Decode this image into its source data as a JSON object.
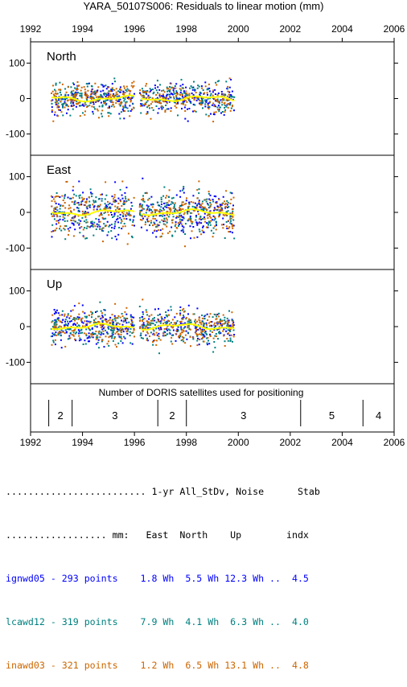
{
  "title": "YARA_50107S006: Residuals to linear motion (mm)",
  "chart_data": {
    "type": "scatter",
    "title": "YARA_50107S006: Residuals to linear motion (mm)",
    "x_ticks": [
      "1992",
      "1994",
      "1996",
      "1998",
      "2000",
      "2002",
      "2004",
      "2006"
    ],
    "xlim": [
      1992,
      2006
    ],
    "panels": [
      {
        "name": "North",
        "ylim": [
          -160,
          160
        ],
        "y_ticks": [
          "100",
          "0",
          "-100"
        ],
        "scatter_sd": 22
      },
      {
        "name": "East",
        "ylim": [
          -160,
          160
        ],
        "y_ticks": [
          "100",
          "0",
          "-100"
        ],
        "scatter_sd": 32
      },
      {
        "name": "Up",
        "ylim": [
          -160,
          160
        ],
        "y_ticks": [
          "100",
          "0",
          "-100"
        ],
        "scatter_sd": 24
      }
    ],
    "data_span": [
      1992.8,
      1999.85
    ],
    "data_gap": [
      1996.0,
      1996.2
    ],
    "series": [
      {
        "name": "ignwd05",
        "points": 293,
        "color": "#0000ff"
      },
      {
        "name": "lcawd12",
        "points": 319,
        "color": "#008080"
      },
      {
        "name": "inawd03",
        "points": 321,
        "color": "#cc6600"
      }
    ],
    "smooth_color": "#ffff00",
    "satellites": {
      "label": "Number of DORIS satellites used for positioning",
      "segments": [
        {
          "start": 1992.7,
          "end": 1993.6,
          "count": "2"
        },
        {
          "start": 1993.6,
          "end": 1996.9,
          "count": "3"
        },
        {
          "start": 1996.9,
          "end": 1998.0,
          "count": "2"
        },
        {
          "start": 1998.0,
          "end": 2002.4,
          "count": "3"
        },
        {
          "start": 2002.4,
          "end": 2004.8,
          "count": "5"
        },
        {
          "start": 2004.8,
          "end": 2006.0,
          "count": "4"
        }
      ]
    }
  },
  "stats": {
    "header1": " ......................... 1-yr All_StDv, Noise      Stab",
    "header2": " .................. mm:   East  North    Up        indx",
    "rows": [
      {
        "text": " ignwd05 - 293 points    1.8 Wh  5.5 Wh 12.3 Wh ..  4.5",
        "color": "#0000ff"
      },
      {
        "text": " lcawd12 - 319 points    7.9 Wh  4.1 Wh  6.3 Wh ..  4.0",
        "color": "#008080"
      },
      {
        "text": " inawd03 - 321 points    1.2 Wh  6.5 Wh 13.1 Wh ..  4.8",
        "color": "#cc6600"
      }
    ]
  }
}
